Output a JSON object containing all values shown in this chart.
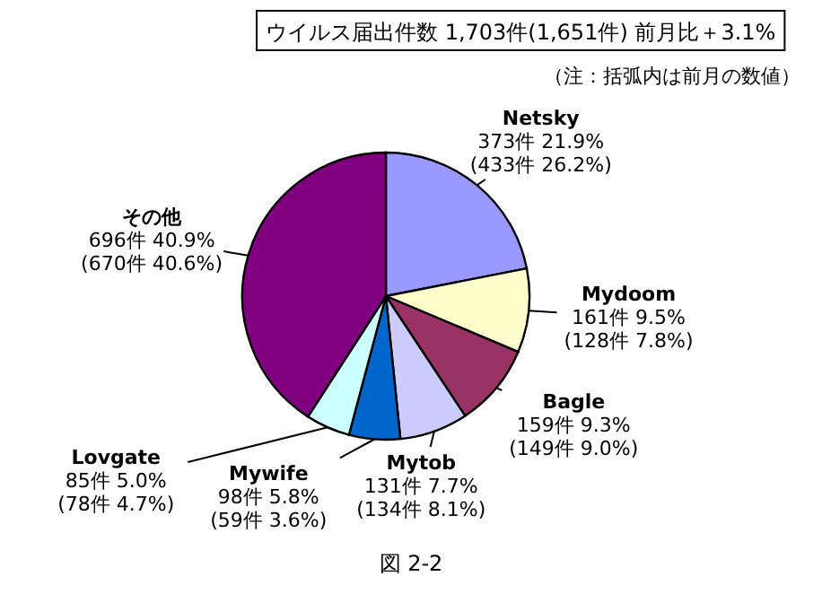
{
  "chart_data": {
    "type": "pie",
    "title": "ウイルス届出件数  1,703件(1,651件)  前月比＋3.1%",
    "subtitle": "（注：括弧内は前月の数値）",
    "categories": [
      "Netsky",
      "Mydoom",
      "Bagle",
      "Mytob",
      "Mywife",
      "Lovgate",
      "その他"
    ],
    "values": [
      373,
      161,
      159,
      131,
      98,
      85,
      696
    ],
    "colors": [
      "#9999ff",
      "#ffffcc",
      "#993366",
      "#ccccff",
      "#0066cc",
      "#ccffff",
      "#800080"
    ],
    "value_labels": [
      "373件 21.9%\n(433件 26.2%)",
      "161件 9.5%\n(128件 7.8%)",
      "159件 9.3%\n(149件 9.0%)",
      "131件 7.7%\n(134件 8.1%)",
      "98件 5.8%\n(59件 3.6%)",
      "85件 5.0%\n(78件 4.7%)",
      "696件 40.9%\n(670件 40.6%)"
    ],
    "annotations": [
      "図 2-2"
    ]
  }
}
